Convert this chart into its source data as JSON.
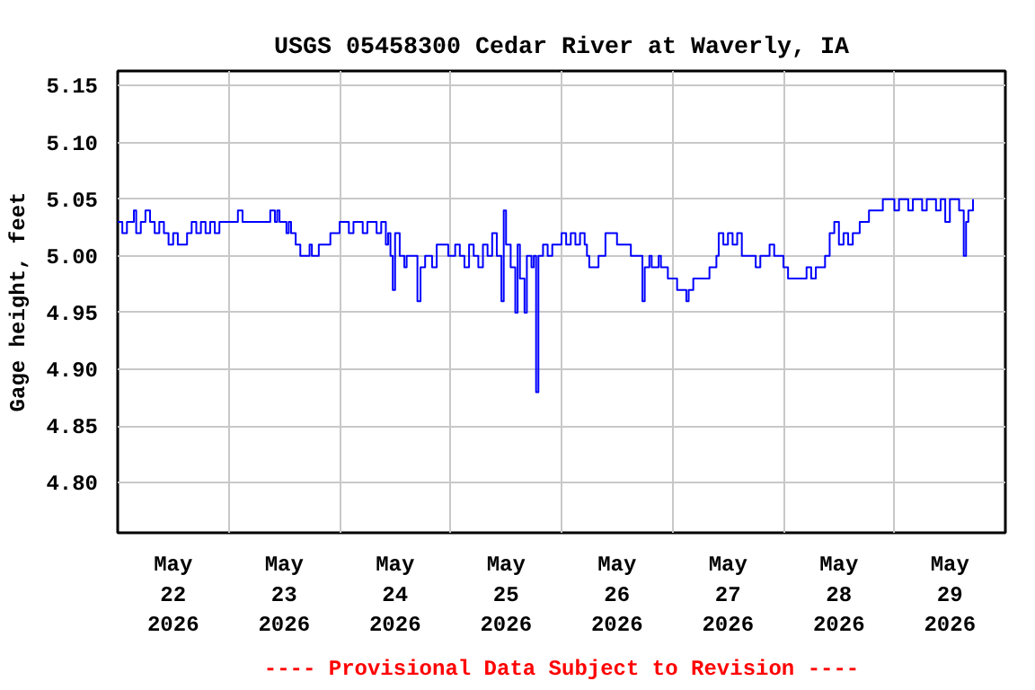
{
  "chart_data": {
    "type": "step",
    "title": "USGS 05458300 Cedar River at Waverly, IA",
    "ylabel": "Gage height, feet",
    "annotations": [
      "---- Provisional Data Subject to Revision ----"
    ],
    "xlim": [
      "2026-05-22T00:00",
      "2026-05-30T00:00"
    ],
    "xticks": [
      {
        "value": "2026-05-22T00:00",
        "label": null
      },
      {
        "value": "2026-05-22T12:00",
        "label": "May\n22\n2026"
      },
      {
        "value": "2026-05-23T00:00",
        "label": null
      },
      {
        "value": "2026-05-23T12:00",
        "label": "May\n23\n2026"
      },
      {
        "value": "2026-05-24T00:00",
        "label": null
      },
      {
        "value": "2026-05-24T12:00",
        "label": "May\n24\n2026"
      },
      {
        "value": "2026-05-25T00:00",
        "label": null
      },
      {
        "value": "2026-05-25T12:00",
        "label": "May\n25\n2026"
      },
      {
        "value": "2026-05-26T00:00",
        "label": null
      },
      {
        "value": "2026-05-26T12:00",
        "label": "May\n26\n2026"
      },
      {
        "value": "2026-05-27T00:00",
        "label": null
      },
      {
        "value": "2026-05-27T12:00",
        "label": "May\n27\n2026"
      },
      {
        "value": "2026-05-28T00:00",
        "label": null
      },
      {
        "value": "2026-05-28T12:00",
        "label": "May\n28\n2026"
      },
      {
        "value": "2026-05-29T00:00",
        "label": null
      },
      {
        "value": "2026-05-29T12:00",
        "label": "May\n29\n2026"
      },
      {
        "value": "2026-05-30T00:00",
        "label": null
      }
    ],
    "ylim": [
      4.756,
      5.163
    ],
    "yticks": [
      {
        "value": 4.8,
        "label": "4.80"
      },
      4.85,
      {
        "value": 4.9,
        "label": "4.90"
      },
      4.95,
      {
        "value": 5.0,
        "label": "5.00"
      },
      5.05,
      {
        "value": 5.1,
        "label": "5.10"
      },
      5.15
    ],
    "grid": true,
    "series": [
      {
        "color": "#0000ff",
        "x": [
          "2026-05-22T00:00",
          "2026-05-22T01:00",
          "2026-05-22T02:00",
          "2026-05-22T03:30",
          "2026-05-22T04:00",
          "2026-05-22T05:00",
          "2026-05-22T06:00",
          "2026-05-22T07:00",
          "2026-05-22T08:00",
          "2026-05-22T09:00",
          "2026-05-22T10:00",
          "2026-05-22T11:00",
          "2026-05-22T12:00",
          "2026-05-22T13:00",
          "2026-05-22T15:00",
          "2026-05-22T16:00",
          "2026-05-22T17:00",
          "2026-05-22T18:00",
          "2026-05-22T19:00",
          "2026-05-22T20:00",
          "2026-05-22T21:00",
          "2026-05-22T22:00",
          "2026-05-23T02:00",
          "2026-05-23T03:00",
          "2026-05-23T09:00",
          "2026-05-23T10:00",
          "2026-05-23T10:30",
          "2026-05-23T11:00",
          "2026-05-23T12:30",
          "2026-05-23T13:00",
          "2026-05-23T13:30",
          "2026-05-23T14:30",
          "2026-05-23T15:30",
          "2026-05-23T17:30",
          "2026-05-23T18:00",
          "2026-05-23T19:30",
          "2026-05-23T22:00",
          "2026-05-24T00:00",
          "2026-05-24T02:00",
          "2026-05-24T03:00",
          "2026-05-24T05:00",
          "2026-05-24T06:00",
          "2026-05-24T08:00",
          "2026-05-24T09:00",
          "2026-05-24T10:00",
          "2026-05-24T10:30",
          "2026-05-24T11:00",
          "2026-05-24T11:30",
          "2026-05-24T12:00",
          "2026-05-24T13:00",
          "2026-05-24T14:00",
          "2026-05-24T14:30",
          "2026-05-24T16:30",
          "2026-05-24T16:50",
          "2026-05-24T17:30",
          "2026-05-24T18:30",
          "2026-05-24T20:00",
          "2026-05-24T21:00",
          "2026-05-24T23:30",
          "2026-05-25T01:00",
          "2026-05-25T02:00",
          "2026-05-25T03:00",
          "2026-05-25T04:00",
          "2026-05-25T05:00",
          "2026-05-25T06:00",
          "2026-05-25T07:00",
          "2026-05-25T08:00",
          "2026-05-25T09:00",
          "2026-05-25T10:00",
          "2026-05-25T11:00",
          "2026-05-25T11:30",
          "2026-05-25T12:00",
          "2026-05-25T13:00",
          "2026-05-25T14:00",
          "2026-05-25T14:30",
          "2026-05-25T15:00",
          "2026-05-25T16:00",
          "2026-05-25T16:30",
          "2026-05-25T17:30",
          "2026-05-25T18:00",
          "2026-05-25T18:30",
          "2026-05-25T19:00",
          "2026-05-25T20:00",
          "2026-05-25T21:00",
          "2026-05-25T22:00",
          "2026-05-26T00:00",
          "2026-05-26T01:00",
          "2026-05-26T02:00",
          "2026-05-26T03:00",
          "2026-05-26T04:00",
          "2026-05-26T05:00",
          "2026-05-26T05:30",
          "2026-05-26T06:00",
          "2026-05-26T08:00",
          "2026-05-26T09:30",
          "2026-05-26T12:00",
          "2026-05-26T15:00",
          "2026-05-26T17:30",
          "2026-05-26T18:00",
          "2026-05-26T19:00",
          "2026-05-26T19:30",
          "2026-05-26T21:00",
          "2026-05-26T21:30",
          "2026-05-26T23:00",
          "2026-05-27T01:00",
          "2026-05-27T03:00",
          "2026-05-27T03:30",
          "2026-05-27T04:30",
          "2026-05-27T08:00",
          "2026-05-27T09:30",
          "2026-05-27T10:00",
          "2026-05-27T11:00",
          "2026-05-27T12:00",
          "2026-05-27T13:00",
          "2026-05-27T14:00",
          "2026-05-27T15:00",
          "2026-05-27T18:00",
          "2026-05-27T19:00",
          "2026-05-27T21:00",
          "2026-05-27T22:00",
          "2026-05-28T00:00",
          "2026-05-28T01:00",
          "2026-05-28T05:00",
          "2026-05-28T06:00",
          "2026-05-28T07:00",
          "2026-05-28T09:00",
          "2026-05-28T10:00",
          "2026-05-28T11:00",
          "2026-05-28T12:00",
          "2026-05-28T13:00",
          "2026-05-28T14:00",
          "2026-05-28T15:00",
          "2026-05-28T16:30",
          "2026-05-28T18:30",
          "2026-05-28T21:30",
          "2026-05-29T00:00",
          "2026-05-29T01:00",
          "2026-05-29T03:00",
          "2026-05-29T04:00",
          "2026-05-29T06:00",
          "2026-05-29T07:00",
          "2026-05-29T09:00",
          "2026-05-29T10:00",
          "2026-05-29T11:00",
          "2026-05-29T12:00",
          "2026-05-29T14:00",
          "2026-05-29T15:00",
          "2026-05-29T15:30",
          "2026-05-29T16:00",
          "2026-05-29T17:00"
        ],
        "values": [
          5.03,
          5.02,
          5.03,
          5.04,
          5.02,
          5.03,
          5.04,
          5.03,
          5.02,
          5.03,
          5.02,
          5.01,
          5.02,
          5.01,
          5.02,
          5.03,
          5.02,
          5.03,
          5.02,
          5.03,
          5.02,
          5.03,
          5.04,
          5.03,
          5.04,
          5.03,
          5.04,
          5.03,
          5.02,
          5.03,
          5.02,
          5.01,
          5.0,
          5.01,
          5.0,
          5.01,
          5.02,
          5.03,
          5.02,
          5.03,
          5.02,
          5.03,
          5.02,
          5.03,
          5.01,
          5.02,
          5.0,
          4.97,
          5.02,
          5.0,
          4.99,
          5.0,
          5.0,
          4.96,
          4.99,
          5.0,
          4.99,
          5.01,
          5.0,
          5.01,
          5.0,
          4.99,
          5.01,
          5.0,
          4.99,
          5.01,
          5.0,
          5.02,
          5.0,
          4.96,
          5.04,
          5.01,
          4.99,
          4.95,
          5.01,
          4.98,
          4.95,
          5.0,
          4.99,
          5.0,
          4.88,
          5.0,
          5.01,
          5.0,
          5.01,
          5.02,
          5.01,
          5.02,
          5.01,
          5.02,
          5.01,
          5.0,
          4.99,
          5.0,
          5.02,
          5.01,
          5.0,
          4.96,
          4.99,
          5.0,
          4.99,
          5.0,
          4.99,
          4.98,
          4.97,
          4.96,
          4.97,
          4.98,
          4.99,
          5.0,
          5.02,
          5.01,
          5.02,
          5.01,
          5.02,
          5.0,
          4.99,
          5.0,
          5.01,
          5.0,
          4.99,
          4.98,
          4.99,
          4.98,
          4.99,
          5.0,
          5.02,
          5.03,
          5.01,
          5.02,
          5.01,
          5.02,
          5.03,
          5.04,
          5.05,
          5.04,
          5.05,
          5.04,
          5.05,
          5.04,
          5.05,
          5.04,
          5.05,
          5.03,
          5.05,
          5.04,
          5.0,
          5.03,
          5.04,
          5.05
        ]
      }
    ]
  }
}
